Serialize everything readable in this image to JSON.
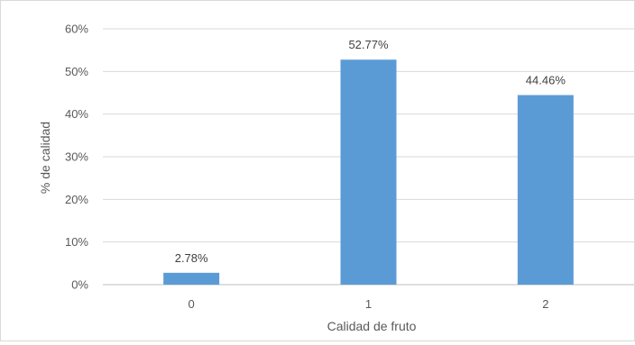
{
  "chart_data": {
    "type": "bar",
    "categories": [
      "0",
      "1",
      "2"
    ],
    "values": [
      2.78,
      52.77,
      44.46
    ],
    "data_labels": [
      "2.78%",
      "52.77%",
      "44.46%"
    ],
    "title": "",
    "xlabel": "Calidad de fruto",
    "ylabel": "% de calidad",
    "ylim": [
      0,
      60
    ],
    "yticks": [
      "0%",
      "10%",
      "20%",
      "30%",
      "40%",
      "50%",
      "60%"
    ],
    "grid": true,
    "legend": "none",
    "bar_color": "#5b9bd5",
    "grid_color": "#d9d9d9"
  }
}
